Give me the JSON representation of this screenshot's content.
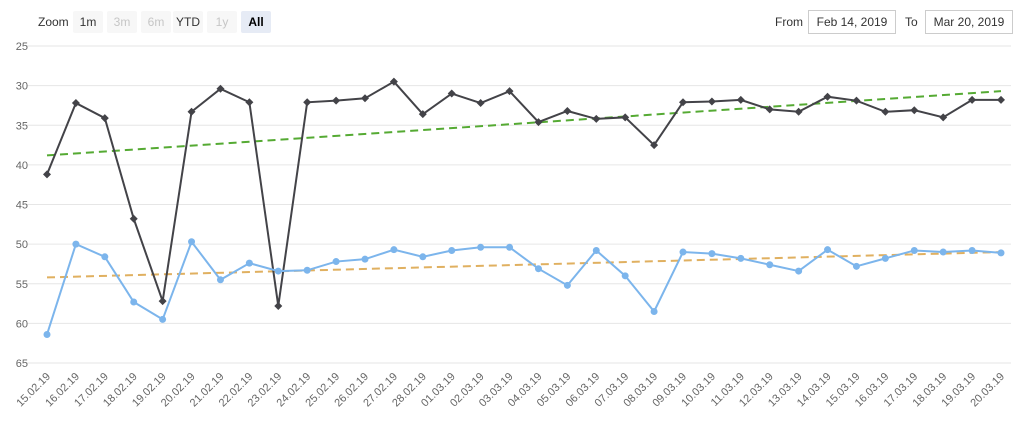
{
  "toolbar": {
    "zoom_label": "Zoom",
    "zoom_buttons": [
      {
        "label": "1m",
        "state": "normal"
      },
      {
        "label": "3m",
        "state": "disabled"
      },
      {
        "label": "6m",
        "state": "disabled"
      },
      {
        "label": "YTD",
        "state": "normal"
      },
      {
        "label": "1y",
        "state": "disabled"
      },
      {
        "label": "All",
        "state": "active"
      }
    ],
    "from_label": "From",
    "from_value": "Feb 14, 2019",
    "to_label": "To",
    "to_value": "Mar 20, 2019"
  },
  "chart_data": {
    "type": "line",
    "y_reversed": true,
    "ylim": [
      25,
      65
    ],
    "yticks": [
      25,
      30,
      35,
      40,
      45,
      50,
      55,
      60,
      65
    ],
    "grid": true,
    "categories": [
      "15.02.19",
      "16.02.19",
      "17.02.19",
      "18.02.19",
      "19.02.19",
      "20.02.19",
      "21.02.19",
      "22.02.19",
      "23.02.19",
      "24.02.19",
      "25.02.19",
      "26.02.19",
      "27.02.19",
      "28.02.19",
      "01.03.19",
      "02.03.19",
      "03.03.19",
      "04.03.19",
      "05.03.19",
      "06.03.19",
      "07.03.19",
      "08.03.19",
      "09.03.19",
      "10.03.19",
      "11.03.19",
      "12.03.19",
      "13.03.19",
      "14.03.19",
      "15.03.19",
      "16.03.19",
      "17.03.19",
      "18.03.19",
      "19.03.19",
      "20.03.19"
    ],
    "series": [
      {
        "color": "#434348",
        "marker": "diamond",
        "values": [
          41.2,
          32.2,
          34.1,
          46.8,
          57.2,
          33.3,
          30.4,
          32.1,
          57.8,
          32.1,
          31.9,
          31.6,
          29.5,
          33.6,
          31.0,
          32.2,
          30.7,
          34.6,
          33.2,
          34.2,
          34.0,
          37.5,
          32.1,
          32.0,
          31.8,
          33.0,
          33.3,
          31.4,
          31.9,
          33.3,
          33.1,
          34.0,
          31.8,
          31.8
        ]
      },
      {
        "color": "#7cb5ec",
        "marker": "circle",
        "values": [
          61.4,
          50.0,
          51.6,
          57.3,
          59.5,
          49.7,
          54.5,
          52.4,
          53.4,
          53.3,
          52.2,
          51.9,
          50.7,
          51.6,
          50.8,
          50.4,
          50.4,
          53.1,
          55.2,
          50.8,
          54.0,
          58.5,
          51.0,
          51.2,
          51.8,
          52.6,
          53.4,
          50.7,
          52.8,
          51.8,
          50.8,
          51.0,
          50.8,
          51.1
        ]
      }
    ],
    "trendlines": [
      {
        "color": "#55aa33",
        "from": 38.8,
        "to": 30.7
      },
      {
        "color": "#e0b060",
        "from": 54.2,
        "to": 51.0
      }
    ]
  }
}
